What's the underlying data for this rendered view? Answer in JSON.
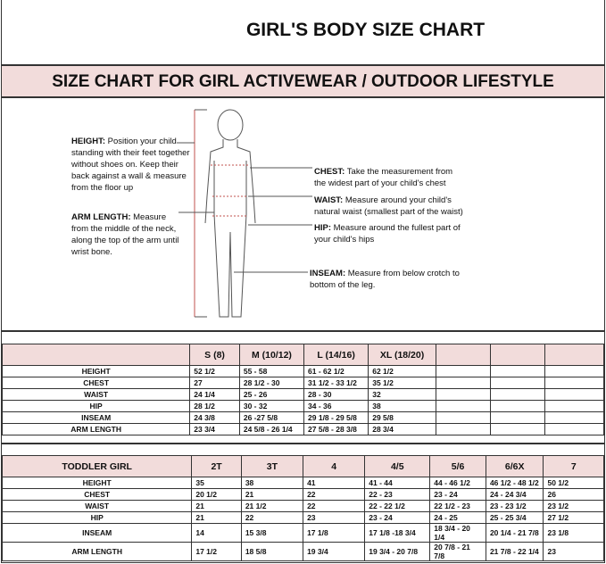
{
  "title": "GIRL'S BODY SIZE CHART",
  "subtitle": "SIZE CHART FOR GIRL ACTIVEWEAR / OUTDOOR LIFESTYLE",
  "notes": {
    "height": {
      "label": "HEIGHT:",
      "text": "Position your child standing with their feet together without shoes on. Keep their back against a wall & measure from the floor up"
    },
    "arm": {
      "label": "ARM LENGTH:",
      "text": "Measure from the middle of the neck, along the top of the arm until wrist bone."
    },
    "chest": {
      "label": "CHEST:",
      "text": "Take the measurement from the widest part of your child's chest"
    },
    "waist": {
      "label": "WAIST:",
      "text": "Measure around your child's natural waist (smallest part of the waist)"
    },
    "hip": {
      "label": "HIP:",
      "text": "Measure around the fullest part of your child's hips"
    },
    "inseam": {
      "label": "INSEAM:",
      "text": "Measure from below crotch to bottom of the leg."
    }
  },
  "girl_table": {
    "header": [
      "",
      "S (8)",
      "M (10/12)",
      "L (14/16)",
      "XL (18/20)",
      "",
      "",
      ""
    ],
    "rows": [
      [
        "HEIGHT",
        "52 1/2",
        "55 - 58",
        "61 - 62 1/2",
        "62 1/2",
        "",
        "",
        ""
      ],
      [
        "CHEST",
        "27",
        "28 1/2 - 30",
        "31 1/2 - 33 1/2",
        "35 1/2",
        "",
        "",
        ""
      ],
      [
        "WAIST",
        "24 1/4",
        "25 - 26",
        "28 - 30",
        "32",
        "",
        "",
        ""
      ],
      [
        "HIP",
        "28 1/2",
        "30 - 32",
        "34 - 36",
        "38",
        "",
        "",
        ""
      ],
      [
        "INSEAM",
        "24 3/8",
        "26 -27 5/8",
        "29 1/8 - 29 5/8",
        "29 5/8",
        "",
        "",
        ""
      ],
      [
        "ARM LENGTH",
        "23 3/4",
        "24 5/8 - 26 1/4",
        "27 5/8 - 28 3/8",
        "28 3/4",
        "",
        "",
        ""
      ]
    ]
  },
  "toddler_table": {
    "header": [
      "TODDLER GIRL",
      "2T",
      "3T",
      "4",
      "4/5",
      "5/6",
      "6/6X",
      "7"
    ],
    "rows": [
      [
        "HEIGHT",
        "35",
        "38",
        "41",
        "41 - 44",
        "44 - 46 1/2",
        "46 1/2 - 48 1/2",
        "50 1/2"
      ],
      [
        "CHEST",
        "20 1/2",
        "21",
        "22",
        "22 - 23",
        "23 - 24",
        "24 - 24 3/4",
        "26"
      ],
      [
        "WAIST",
        "21",
        "21 1/2",
        "22",
        "22 - 22 1/2",
        "22 1/2 - 23",
        "23 - 23 1/2",
        "23 1/2"
      ],
      [
        "HIP",
        "21",
        "22",
        "23",
        "23 - 24",
        "24 - 25",
        "25 - 25 3/4",
        "27 1/2"
      ],
      [
        "INSEAM",
        "14",
        "15 3/8",
        "17 1/8",
        "17 1/8 -18 3/4",
        "18 3/4 - 20 1/4",
        "20 1/4 - 21 7/8",
        "23 1/8"
      ],
      [
        "ARM LENGTH",
        "17 1/2",
        "18 5/8",
        "19 3/4",
        "19 3/4 - 20 7/8",
        "20 7/8 - 21 7/8",
        "21 7/8 - 22 1/4",
        "23"
      ]
    ]
  }
}
